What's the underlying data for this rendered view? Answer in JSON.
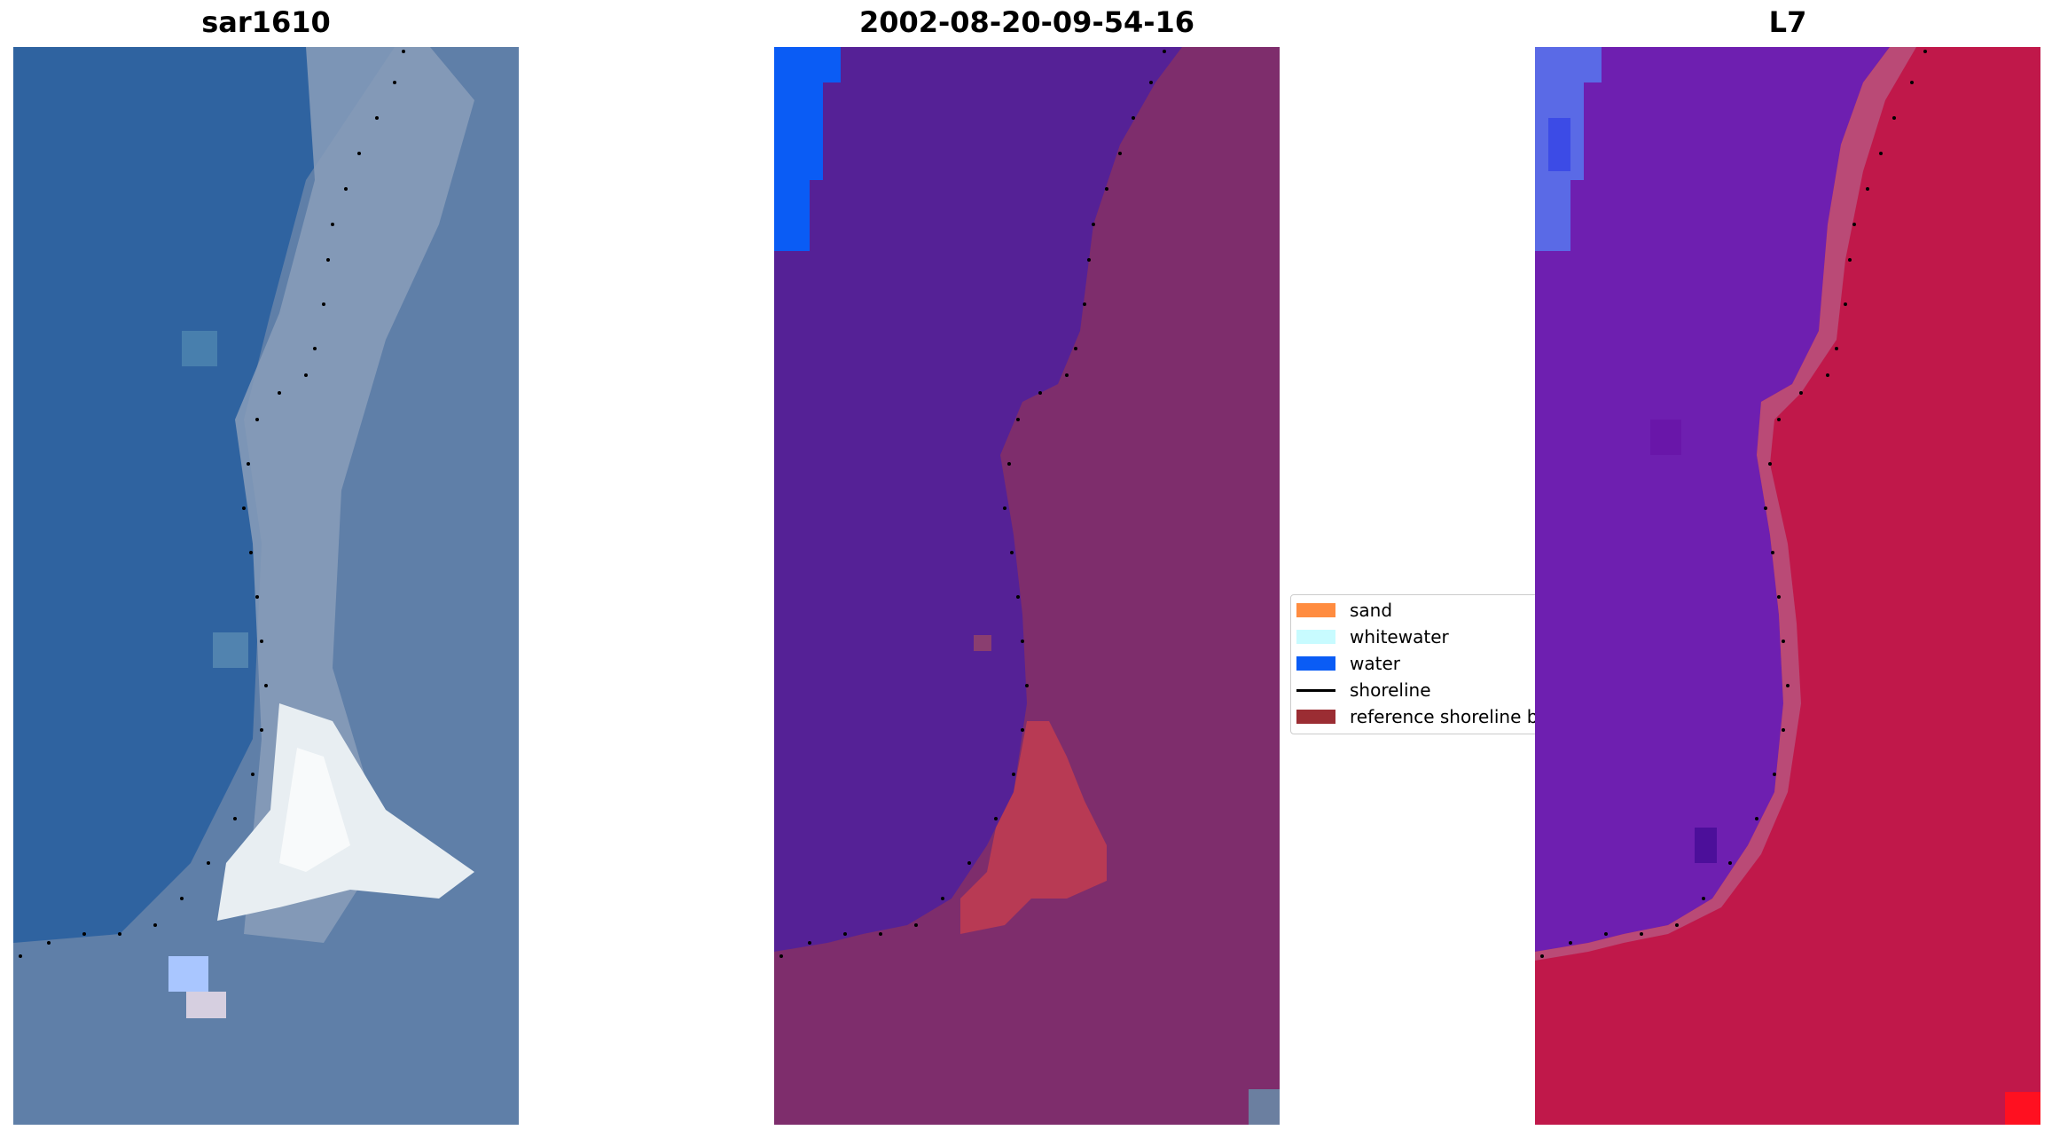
{
  "panels": [
    {
      "title": "sar1610"
    },
    {
      "title": "2002-08-20-09-54-16"
    },
    {
      "title": "L7"
    }
  ],
  "legend": {
    "items": [
      {
        "label": "sand",
        "color": "#ff8c40"
      },
      {
        "label": "whitewater",
        "color": "#c8fbff"
      },
      {
        "label": "water",
        "color": "#0a5cf5"
      },
      {
        "label": "shoreline",
        "color": "#000000"
      },
      {
        "label": "reference shoreline buffer",
        "color": "#9b2d33"
      }
    ]
  },
  "colors": {
    "rgb_water": "#2f63a0",
    "rgb_land": "#5f7fa8",
    "class_water": "#552196",
    "class_land": "#7e2d6c",
    "class_sand": "#b83a54",
    "ndwi_water": "#6e1fb0",
    "ndwi_land": "#c0184a"
  }
}
